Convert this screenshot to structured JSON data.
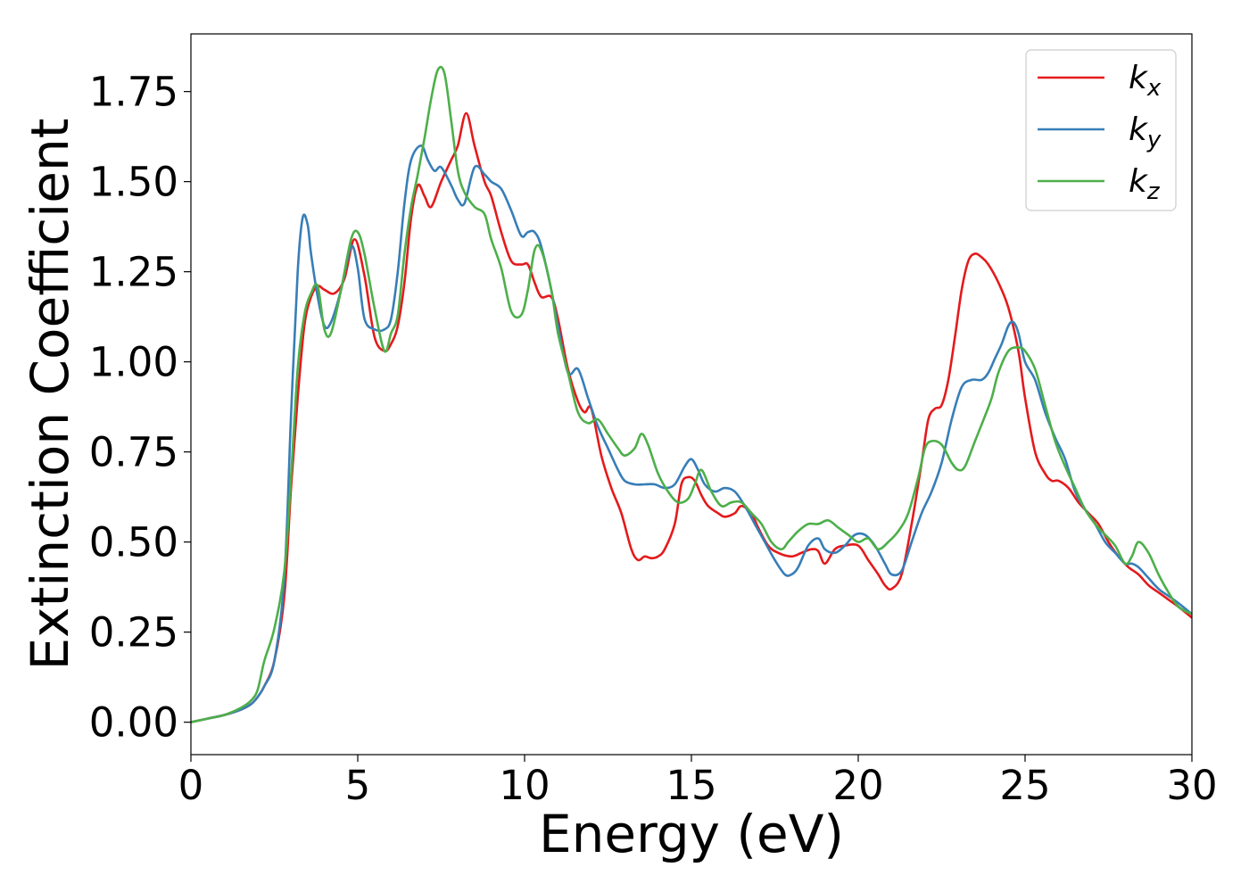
{
  "chart_data": {
    "type": "line",
    "title": "",
    "xlabel": "Energy (eV)",
    "ylabel": "Extinction Coefficient",
    "xlim": [
      0,
      30
    ],
    "ylim": [
      -0.09,
      1.91
    ],
    "xticks": [
      0,
      5,
      10,
      15,
      20,
      25,
      30
    ],
    "xtick_labels": [
      "0",
      "5",
      "10",
      "15",
      "20",
      "25",
      "30"
    ],
    "yticks": [
      0.0,
      0.25,
      0.5,
      0.75,
      1.0,
      1.25,
      1.5,
      1.75
    ],
    "ytick_labels": [
      "0.00",
      "0.25",
      "0.50",
      "0.75",
      "1.00",
      "1.25",
      "1.50",
      "1.75"
    ],
    "grid": false,
    "legend_position": "top-right",
    "series": [
      {
        "name": "k_x",
        "label_base": "k",
        "label_sub": "x",
        "color": "#e41a1c",
        "x": [
          0,
          0.5,
          1,
          1.5,
          1.8,
          2,
          2.2,
          2.5,
          2.8,
          3.0,
          3.2,
          3.4,
          3.6,
          3.8,
          4.0,
          4.3,
          4.6,
          4.9,
          5.2,
          5.5,
          5.8,
          6.0,
          6.2,
          6.4,
          6.6,
          6.8,
          7.0,
          7.2,
          7.5,
          7.8,
          8.0,
          8.25,
          8.5,
          8.8,
          9.0,
          9.3,
          9.6,
          9.9,
          10.1,
          10.3,
          10.5,
          10.8,
          11.0,
          11.3,
          11.6,
          11.8,
          12.0,
          12.3,
          12.6,
          12.9,
          13.2,
          13.4,
          13.6,
          13.8,
          14.0,
          14.2,
          14.5,
          14.7,
          14.9,
          15.1,
          15.3,
          15.5,
          15.8,
          16.0,
          16.3,
          16.5,
          16.8,
          17.0,
          17.3,
          17.6,
          18.0,
          18.3,
          18.6,
          18.8,
          19.0,
          19.3,
          19.6,
          20.0,
          20.3,
          20.6,
          20.8,
          21.0,
          21.3,
          21.6,
          21.9,
          22.1,
          22.3,
          22.5,
          22.7,
          22.9,
          23.1,
          23.3,
          23.5,
          23.7,
          23.9,
          24.2,
          24.5,
          24.8,
          25.0,
          25.3,
          25.6,
          25.8,
          26.0,
          26.3,
          26.6,
          26.9,
          27.2,
          27.5,
          27.8,
          28.1,
          28.4,
          28.7,
          29.0,
          29.3,
          29.6,
          30.0
        ],
        "y": [
          0.0,
          0.01,
          0.02,
          0.035,
          0.05,
          0.07,
          0.1,
          0.17,
          0.35,
          0.65,
          0.9,
          1.1,
          1.18,
          1.21,
          1.2,
          1.19,
          1.23,
          1.34,
          1.24,
          1.07,
          1.03,
          1.05,
          1.1,
          1.22,
          1.4,
          1.49,
          1.46,
          1.43,
          1.5,
          1.56,
          1.6,
          1.69,
          1.6,
          1.5,
          1.46,
          1.36,
          1.28,
          1.27,
          1.27,
          1.22,
          1.18,
          1.18,
          1.12,
          0.98,
          0.89,
          0.86,
          0.87,
          0.74,
          0.65,
          0.58,
          0.48,
          0.45,
          0.46,
          0.455,
          0.46,
          0.48,
          0.55,
          0.66,
          0.68,
          0.67,
          0.63,
          0.6,
          0.58,
          0.57,
          0.58,
          0.6,
          0.58,
          0.54,
          0.49,
          0.47,
          0.46,
          0.47,
          0.48,
          0.475,
          0.44,
          0.48,
          0.49,
          0.49,
          0.45,
          0.41,
          0.38,
          0.37,
          0.41,
          0.55,
          0.72,
          0.84,
          0.87,
          0.88,
          0.95,
          1.07,
          1.2,
          1.28,
          1.3,
          1.29,
          1.27,
          1.22,
          1.15,
          1.03,
          0.9,
          0.75,
          0.69,
          0.67,
          0.67,
          0.65,
          0.61,
          0.58,
          0.55,
          0.5,
          0.46,
          0.43,
          0.41,
          0.38,
          0.36,
          0.34,
          0.32,
          0.29
        ]
      },
      {
        "name": "k_y",
        "label_base": "k",
        "label_sub": "y",
        "color": "#377eb8",
        "x": [
          0,
          0.5,
          1,
          1.5,
          1.8,
          2,
          2.2,
          2.5,
          2.8,
          3.0,
          3.2,
          3.35,
          3.5,
          3.6,
          3.8,
          4.0,
          4.2,
          4.5,
          4.8,
          5.0,
          5.2,
          5.5,
          5.8,
          6.0,
          6.2,
          6.4,
          6.6,
          6.9,
          7.1,
          7.3,
          7.5,
          7.8,
          8.0,
          8.2,
          8.5,
          8.8,
          9.0,
          9.3,
          9.6,
          9.9,
          10.1,
          10.3,
          10.5,
          10.8,
          11.0,
          11.3,
          11.6,
          11.9,
          12.2,
          12.5,
          12.8,
          13.0,
          13.3,
          13.6,
          13.9,
          14.2,
          14.5,
          14.8,
          15.0,
          15.2,
          15.4,
          15.7,
          16.0,
          16.3,
          16.6,
          16.9,
          17.2,
          17.5,
          17.8,
          18.0,
          18.2,
          18.5,
          18.8,
          19.0,
          19.3,
          19.6,
          19.9,
          20.2,
          20.5,
          20.8,
          21.0,
          21.3,
          21.6,
          21.9,
          22.2,
          22.5,
          22.8,
          23.1,
          23.4,
          23.7,
          23.9,
          24.1,
          24.3,
          24.5,
          24.65,
          24.8,
          25.0,
          25.3,
          25.6,
          25.9,
          26.2,
          26.5,
          26.8,
          27.1,
          27.4,
          27.7,
          28.0,
          28.2,
          28.4,
          28.7,
          29.0,
          29.3,
          29.6,
          30.0
        ],
        "y": [
          0.0,
          0.01,
          0.02,
          0.035,
          0.05,
          0.07,
          0.1,
          0.17,
          0.4,
          0.85,
          1.25,
          1.4,
          1.38,
          1.3,
          1.18,
          1.1,
          1.11,
          1.2,
          1.32,
          1.26,
          1.12,
          1.09,
          1.09,
          1.12,
          1.25,
          1.44,
          1.56,
          1.6,
          1.56,
          1.53,
          1.54,
          1.49,
          1.45,
          1.44,
          1.54,
          1.52,
          1.5,
          1.48,
          1.42,
          1.35,
          1.36,
          1.36,
          1.32,
          1.2,
          1.1,
          0.97,
          0.98,
          0.9,
          0.82,
          0.76,
          0.7,
          0.67,
          0.66,
          0.66,
          0.66,
          0.65,
          0.66,
          0.71,
          0.73,
          0.7,
          0.66,
          0.64,
          0.65,
          0.64,
          0.6,
          0.55,
          0.5,
          0.45,
          0.41,
          0.41,
          0.43,
          0.49,
          0.51,
          0.48,
          0.47,
          0.49,
          0.52,
          0.52,
          0.49,
          0.44,
          0.41,
          0.42,
          0.5,
          0.58,
          0.64,
          0.72,
          0.84,
          0.93,
          0.95,
          0.95,
          0.97,
          1.01,
          1.05,
          1.1,
          1.11,
          1.08,
          1.0,
          0.95,
          0.86,
          0.79,
          0.73,
          0.64,
          0.59,
          0.55,
          0.5,
          0.47,
          0.44,
          0.44,
          0.43,
          0.4,
          0.37,
          0.35,
          0.33,
          0.3
        ]
      },
      {
        "name": "k_z",
        "label_base": "k",
        "label_sub": "z",
        "color": "#4daf4a",
        "x": [
          0,
          0.5,
          1,
          1.5,
          1.8,
          2,
          2.2,
          2.5,
          2.8,
          3.0,
          3.2,
          3.4,
          3.6,
          3.8,
          4.0,
          4.2,
          4.5,
          4.8,
          5.0,
          5.2,
          5.5,
          5.8,
          6.0,
          6.2,
          6.4,
          6.6,
          6.8,
          7.0,
          7.2,
          7.4,
          7.6,
          7.8,
          8.0,
          8.2,
          8.5,
          8.8,
          9.0,
          9.3,
          9.6,
          9.9,
          10.1,
          10.3,
          10.5,
          10.8,
          11.0,
          11.3,
          11.6,
          11.9,
          12.2,
          12.5,
          12.8,
          13.0,
          13.3,
          13.5,
          13.7,
          14.0,
          14.3,
          14.6,
          14.9,
          15.1,
          15.3,
          15.6,
          15.9,
          16.2,
          16.5,
          16.8,
          17.1,
          17.4,
          17.7,
          17.9,
          18.2,
          18.5,
          18.8,
          19.1,
          19.4,
          19.7,
          20.0,
          20.3,
          20.6,
          20.9,
          21.2,
          21.5,
          21.8,
          22.0,
          22.2,
          22.5,
          22.8,
          23.0,
          23.2,
          23.5,
          23.8,
          24.0,
          24.2,
          24.5,
          24.8,
          25.0,
          25.3,
          25.6,
          25.9,
          26.2,
          26.5,
          26.8,
          27.1,
          27.4,
          27.7,
          28.0,
          28.2,
          28.4,
          28.7,
          29.0,
          29.3,
          29.6,
          30.0
        ],
        "y": [
          0.0,
          0.01,
          0.02,
          0.04,
          0.06,
          0.09,
          0.17,
          0.26,
          0.42,
          0.68,
          0.98,
          1.13,
          1.19,
          1.21,
          1.09,
          1.08,
          1.2,
          1.34,
          1.36,
          1.3,
          1.15,
          1.03,
          1.08,
          1.13,
          1.3,
          1.43,
          1.52,
          1.62,
          1.73,
          1.81,
          1.8,
          1.67,
          1.53,
          1.47,
          1.43,
          1.41,
          1.34,
          1.26,
          1.14,
          1.13,
          1.2,
          1.31,
          1.31,
          1.2,
          1.08,
          0.97,
          0.86,
          0.83,
          0.84,
          0.8,
          0.76,
          0.74,
          0.76,
          0.8,
          0.77,
          0.69,
          0.64,
          0.61,
          0.62,
          0.66,
          0.7,
          0.64,
          0.6,
          0.61,
          0.61,
          0.58,
          0.55,
          0.5,
          0.48,
          0.5,
          0.53,
          0.55,
          0.55,
          0.56,
          0.54,
          0.52,
          0.5,
          0.51,
          0.48,
          0.5,
          0.53,
          0.58,
          0.68,
          0.76,
          0.78,
          0.77,
          0.72,
          0.7,
          0.71,
          0.78,
          0.85,
          0.9,
          0.97,
          1.03,
          1.04,
          1.03,
          0.98,
          0.88,
          0.78,
          0.71,
          0.65,
          0.59,
          0.55,
          0.52,
          0.49,
          0.44,
          0.46,
          0.5,
          0.47,
          0.41,
          0.36,
          0.32,
          0.3
        ]
      }
    ]
  }
}
